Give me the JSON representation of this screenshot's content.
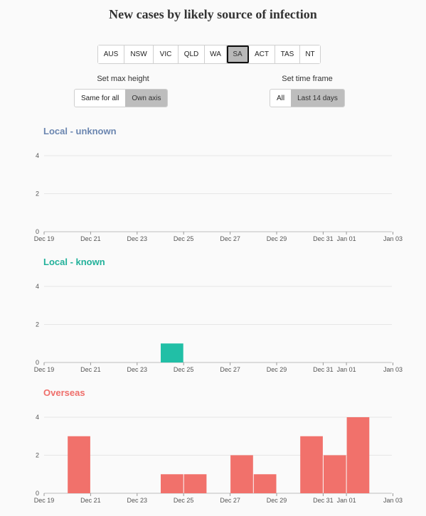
{
  "title": "New cases by likely source of infection",
  "state_tabs": [
    "AUS",
    "NSW",
    "VIC",
    "QLD",
    "WA",
    "SA",
    "ACT",
    "TAS",
    "NT"
  ],
  "selected_state": "SA",
  "max_height": {
    "label": "Set max height",
    "options": [
      "Same for all",
      "Own axis"
    ],
    "selected": "Own axis"
  },
  "time_frame": {
    "label": "Set time frame",
    "options": [
      "All",
      "Last 14 days"
    ],
    "selected": "Last 14 days"
  },
  "chart_data": [
    {
      "type": "bar",
      "title": "Local - unknown",
      "color": "#6b86b0",
      "bar_color": "#6b86b0",
      "categories": [
        "Dec 19",
        "Dec 20",
        "Dec 21",
        "Dec 22",
        "Dec 23",
        "Dec 24",
        "Dec 25",
        "Dec 26",
        "Dec 27",
        "Dec 28",
        "Dec 29",
        "Dec 30",
        "Dec 31",
        "Jan 01",
        "Jan 02"
      ],
      "values": [
        0,
        0,
        0,
        0,
        0,
        0,
        0,
        0,
        0,
        0,
        0,
        0,
        0,
        0,
        0
      ],
      "x_ticks": [
        "Dec 19",
        "Dec 21",
        "Dec 23",
        "Dec 25",
        "Dec 27",
        "Dec 29",
        "Dec 31",
        "Jan 01",
        "Jan 03"
      ],
      "y_ticks": [
        0,
        2,
        4
      ],
      "ylim": [
        0,
        4
      ]
    },
    {
      "type": "bar",
      "title": "Local - known",
      "color": "#22b19a",
      "bar_color": "#21bfa6",
      "categories": [
        "Dec 19",
        "Dec 20",
        "Dec 21",
        "Dec 22",
        "Dec 23",
        "Dec 24",
        "Dec 25",
        "Dec 26",
        "Dec 27",
        "Dec 28",
        "Dec 29",
        "Dec 30",
        "Dec 31",
        "Jan 01",
        "Jan 02"
      ],
      "values": [
        0,
        0,
        0,
        0,
        0,
        1,
        0,
        0,
        0,
        0,
        0,
        0,
        0,
        0,
        0
      ],
      "x_ticks": [
        "Dec 19",
        "Dec 21",
        "Dec 23",
        "Dec 25",
        "Dec 27",
        "Dec 29",
        "Dec 31",
        "Jan 01",
        "Jan 03"
      ],
      "y_ticks": [
        0,
        2,
        4
      ],
      "ylim": [
        0,
        4
      ]
    },
    {
      "type": "bar",
      "title": "Overseas",
      "color": "#ef6e6a",
      "bar_color": "#f1716b",
      "categories": [
        "Dec 19",
        "Dec 20",
        "Dec 21",
        "Dec 22",
        "Dec 23",
        "Dec 24",
        "Dec 25",
        "Dec 26",
        "Dec 27",
        "Dec 28",
        "Dec 29",
        "Dec 30",
        "Dec 31",
        "Jan 01",
        "Jan 02"
      ],
      "values": [
        0,
        3,
        0,
        0,
        0,
        1,
        1,
        0,
        2,
        1,
        0,
        3,
        2,
        4,
        0
      ],
      "x_ticks": [
        "Dec 19",
        "Dec 21",
        "Dec 23",
        "Dec 25",
        "Dec 27",
        "Dec 29",
        "Dec 31",
        "Jan 01",
        "Jan 03"
      ],
      "y_ticks": [
        0,
        2,
        4
      ],
      "ylim": [
        0,
        4
      ]
    }
  ]
}
